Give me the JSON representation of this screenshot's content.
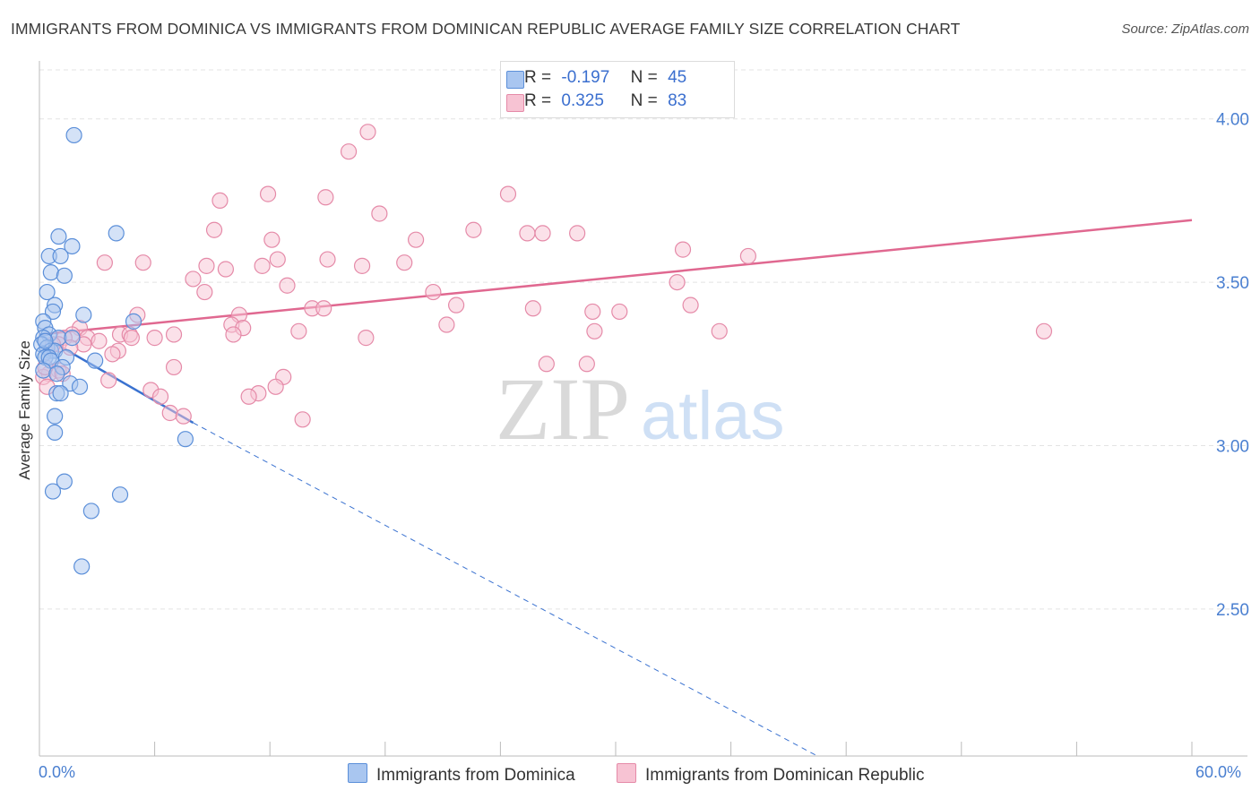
{
  "header": {
    "title": "IMMIGRANTS FROM DOMINICA VS IMMIGRANTS FROM DOMINICAN REPUBLIC AVERAGE FAMILY SIZE CORRELATION CHART",
    "source": "Source: ZipAtlas.com"
  },
  "watermark": {
    "zip": "ZIP",
    "atlas": "atlas"
  },
  "legend": {
    "r_label": "R =",
    "n_label": "N =",
    "series1": {
      "r": "-0.197",
      "n": "45"
    },
    "series2": {
      "r": "0.325",
      "n": "83"
    }
  },
  "chart_data": {
    "type": "scatter",
    "title": "IMMIGRANTS FROM DOMINICA VS IMMIGRANTS FROM DOMINICAN REPUBLIC AVERAGE FAMILY SIZE CORRELATION CHART",
    "ylabel": "Average Family Size",
    "xlabel": "",
    "xlim": [
      0,
      60
    ],
    "ylim": [
      2.05,
      4.15
    ],
    "x_tick_labels": [
      "0.0%",
      "60.0%"
    ],
    "y_ticks": [
      2.5,
      3.0,
      3.5,
      4.0
    ],
    "y_tick_labels": [
      "2.50",
      "3.00",
      "3.50",
      "4.00"
    ],
    "grid": "horizontal dashed",
    "legend_position": "top-center",
    "colors": {
      "series1_fill": "#a9c6f0",
      "series1_stroke": "#5b8fd9",
      "series1_line": "#3a72d0",
      "series2_fill": "#f7c3d3",
      "series2_stroke": "#e58aa8",
      "series2_line": "#e06890",
      "axis_tick_text": "#4a7fd0"
    },
    "series": [
      {
        "name": "Immigrants from Dominica",
        "r": -0.197,
        "n": 45,
        "trend": {
          "x": [
            0,
            8
          ],
          "y": [
            3.34,
            3.07
          ],
          "dashed_to": [
            40.5,
            2.05
          ]
        },
        "points": [
          [
            1.8,
            3.95
          ],
          [
            1.0,
            3.64
          ],
          [
            4.0,
            3.65
          ],
          [
            1.7,
            3.61
          ],
          [
            0.5,
            3.58
          ],
          [
            1.1,
            3.58
          ],
          [
            0.6,
            3.53
          ],
          [
            1.3,
            3.52
          ],
          [
            0.4,
            3.47
          ],
          [
            0.8,
            3.43
          ],
          [
            0.7,
            3.41
          ],
          [
            2.3,
            3.4
          ],
          [
            0.2,
            3.38
          ],
          [
            0.3,
            3.36
          ],
          [
            0.5,
            3.34
          ],
          [
            0.2,
            3.33
          ],
          [
            1.0,
            3.33
          ],
          [
            1.7,
            3.33
          ],
          [
            0.1,
            3.31
          ],
          [
            0.4,
            3.3
          ],
          [
            0.6,
            3.29
          ],
          [
            0.8,
            3.29
          ],
          [
            0.2,
            3.28
          ],
          [
            0.3,
            3.27
          ],
          [
            0.5,
            3.27
          ],
          [
            1.4,
            3.27
          ],
          [
            0.6,
            3.26
          ],
          [
            2.9,
            3.26
          ],
          [
            1.2,
            3.24
          ],
          [
            0.2,
            3.23
          ],
          [
            0.9,
            3.22
          ],
          [
            1.6,
            3.19
          ],
          [
            2.1,
            3.18
          ],
          [
            0.9,
            3.16
          ],
          [
            1.1,
            3.16
          ],
          [
            4.9,
            3.38
          ],
          [
            0.8,
            3.09
          ],
          [
            0.8,
            3.04
          ],
          [
            7.6,
            3.02
          ],
          [
            1.3,
            2.89
          ],
          [
            0.7,
            2.86
          ],
          [
            4.2,
            2.85
          ],
          [
            2.7,
            2.8
          ],
          [
            2.2,
            2.63
          ],
          [
            0.3,
            3.32
          ]
        ]
      },
      {
        "name": "Immigrants from Dominican Republic",
        "r": 0.325,
        "n": 83,
        "trend": {
          "x": [
            0,
            60
          ],
          "y": [
            3.34,
            3.69
          ]
        },
        "points": [
          [
            17.1,
            3.96
          ],
          [
            16.1,
            3.9
          ],
          [
            24.4,
            3.77
          ],
          [
            11.9,
            3.77
          ],
          [
            14.9,
            3.76
          ],
          [
            9.4,
            3.75
          ],
          [
            17.7,
            3.71
          ],
          [
            9.1,
            3.66
          ],
          [
            22.6,
            3.66
          ],
          [
            25.4,
            3.65
          ],
          [
            26.2,
            3.65
          ],
          [
            28.0,
            3.65
          ],
          [
            12.1,
            3.63
          ],
          [
            19.6,
            3.63
          ],
          [
            33.5,
            3.6
          ],
          [
            36.9,
            3.58
          ],
          [
            12.4,
            3.57
          ],
          [
            15.0,
            3.57
          ],
          [
            3.4,
            3.56
          ],
          [
            5.4,
            3.56
          ],
          [
            8.7,
            3.55
          ],
          [
            11.6,
            3.55
          ],
          [
            9.7,
            3.54
          ],
          [
            16.8,
            3.55
          ],
          [
            19.0,
            3.56
          ],
          [
            8.0,
            3.51
          ],
          [
            12.9,
            3.49
          ],
          [
            33.2,
            3.5
          ],
          [
            20.5,
            3.47
          ],
          [
            8.6,
            3.47
          ],
          [
            21.7,
            3.43
          ],
          [
            25.7,
            3.42
          ],
          [
            33.9,
            3.43
          ],
          [
            14.2,
            3.42
          ],
          [
            14.8,
            3.42
          ],
          [
            28.8,
            3.41
          ],
          [
            30.2,
            3.41
          ],
          [
            5.1,
            3.4
          ],
          [
            10.4,
            3.4
          ],
          [
            21.2,
            3.37
          ],
          [
            10.0,
            3.37
          ],
          [
            10.6,
            3.36
          ],
          [
            2.1,
            3.36
          ],
          [
            28.9,
            3.35
          ],
          [
            35.4,
            3.35
          ],
          [
            52.3,
            3.35
          ],
          [
            13.5,
            3.35
          ],
          [
            4.2,
            3.34
          ],
          [
            7.0,
            3.34
          ],
          [
            4.7,
            3.34
          ],
          [
            1.7,
            3.34
          ],
          [
            10.1,
            3.34
          ],
          [
            2.5,
            3.33
          ],
          [
            6.0,
            3.33
          ],
          [
            4.8,
            3.33
          ],
          [
            17.0,
            3.33
          ],
          [
            1.3,
            3.33
          ],
          [
            3.1,
            3.32
          ],
          [
            2.3,
            3.31
          ],
          [
            1.0,
            3.31
          ],
          [
            1.6,
            3.3
          ],
          [
            0.7,
            3.31
          ],
          [
            4.1,
            3.29
          ],
          [
            3.8,
            3.28
          ],
          [
            26.4,
            3.25
          ],
          [
            28.5,
            3.25
          ],
          [
            7.0,
            3.24
          ],
          [
            1.0,
            3.23
          ],
          [
            0.5,
            3.22
          ],
          [
            1.2,
            3.22
          ],
          [
            0.2,
            3.21
          ],
          [
            12.7,
            3.21
          ],
          [
            3.6,
            3.2
          ],
          [
            12.3,
            3.18
          ],
          [
            0.4,
            3.18
          ],
          [
            5.8,
            3.17
          ],
          [
            11.4,
            3.16
          ],
          [
            6.3,
            3.15
          ],
          [
            10.9,
            3.15
          ],
          [
            6.8,
            3.1
          ],
          [
            7.5,
            3.09
          ],
          [
            13.7,
            3.08
          ],
          [
            0.3,
            3.24
          ]
        ]
      }
    ]
  },
  "bottom_legend": {
    "item1": "Immigrants from Dominica",
    "item2": "Immigrants from Dominican Republic"
  }
}
